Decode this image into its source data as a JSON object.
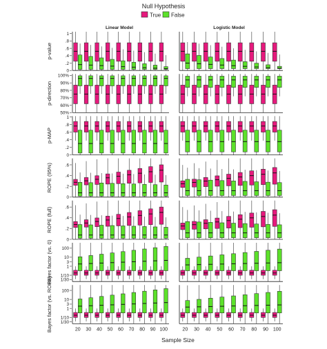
{
  "legend": {
    "title": "Null Hypothesis",
    "items": [
      {
        "label": "True",
        "color": "#e6197d"
      },
      {
        "label": "False",
        "color": "#5ce12a"
      }
    ]
  },
  "x_axis_label": "Sample Size",
  "chart_data": {
    "type": "boxplot",
    "title": "",
    "legend_title": "Null Hypothesis",
    "legend_position": "top",
    "xlabel": "Sample Size",
    "x": [
      "20",
      "30",
      "40",
      "50",
      "60",
      "70",
      "80",
      "90",
      "100"
    ],
    "panel_columns": [
      "Linear Model",
      "Logistic Model"
    ],
    "series_order": [
      "True",
      "False"
    ],
    "rows": [
      {
        "ylabel": "p-value",
        "scale": "linear",
        "ylim": [
          0,
          1.05
        ],
        "ticks": [
          0,
          0.2,
          0.4,
          0.6,
          0.8,
          1
        ],
        "tick_labels": [
          "0",
          ".2",
          ".4",
          ".6",
          ".8",
          "1"
        ],
        "panels": [
          {
            "True": [
              0.25,
              0.52,
              0.75
            ],
            "False": [
              0.03,
              0.16,
              0.42
            ]
          },
          {
            "True": [
              0.25,
              0.52,
              0.75
            ],
            "False": [
              0.05,
              0.2,
              0.45
            ]
          }
        ]
      },
      {
        "ylabel": "p-direction",
        "scale": "linear",
        "ylim": [
          50,
          102
        ],
        "ticks": [
          50,
          60,
          70,
          80,
          90,
          100
        ],
        "tick_labels": [
          "50%",
          "60%",
          "70%",
          "80%",
          "90%",
          "100%"
        ],
        "panels": [
          {
            "True": [
              62,
              75,
              87
            ],
            "False": [
              86,
              96,
              99.5
            ]
          },
          {
            "True": [
              62,
              75,
              87
            ],
            "False": [
              84,
              94,
              99
            ]
          }
        ]
      },
      {
        "ylabel": "p-MAP",
        "scale": "linear",
        "ylim": [
          0,
          1.02
        ],
        "ticks": [
          0,
          0.2,
          0.4,
          0.6,
          0.8,
          1
        ],
        "tick_labels": [
          "0",
          ".2",
          ".4",
          ".6",
          ".8",
          "1"
        ],
        "panels": [
          {
            "True": [
              0.6,
              0.76,
              0.88
            ],
            "False": [
              0.05,
              0.3,
              0.65
            ]
          },
          {
            "True": [
              0.6,
              0.76,
              0.88
            ],
            "False": [
              0.08,
              0.35,
              0.65
            ]
          }
        ]
      },
      {
        "ylabel": "ROPE (95%)",
        "scale": "linear",
        "ylim": [
          0,
          0.72
        ],
        "ticks": [
          0,
          0.2,
          0.4,
          0.6
        ],
        "tick_labels": [
          "0",
          ".2",
          ".4",
          ".6"
        ],
        "panels": [
          {
            "True": [
              0.22,
              0.5,
              0.6
            ],
            "False": [
              0.02,
              0.08,
              0.25
            ]
          },
          {
            "True": [
              0.18,
              0.45,
              0.55
            ],
            "False": [
              0.03,
              0.12,
              0.3
            ]
          }
        ]
      },
      {
        "ylabel": "ROPE (full)",
        "scale": "linear",
        "ylim": [
          0,
          0.72
        ],
        "ticks": [
          0,
          0.2,
          0.4,
          0.6
        ],
        "tick_labels": [
          "0",
          ".2",
          ".4",
          ".6"
        ],
        "panels": [
          {
            "True": [
              0.22,
              0.5,
              0.6
            ],
            "False": [
              0.02,
              0.08,
              0.25
            ]
          },
          {
            "True": [
              0.18,
              0.45,
              0.55
            ],
            "False": [
              0.03,
              0.12,
              0.3
            ]
          }
        ]
      },
      {
        "ylabel": "Bayes factor (vs. 0)",
        "scale": "log",
        "ylim": [
          -1.7,
          2.6
        ],
        "ticks": [
          -1.477,
          -1,
          0,
          0.477,
          1,
          2
        ],
        "tick_labels": [
          "1/30",
          "1/10",
          "1",
          "3",
          "10",
          "100"
        ],
        "panels": [
          {
            "True": [
              -1.0,
              -0.75,
              -0.45
            ],
            "False": [
              -0.5,
              0.5,
              1.9
            ]
          },
          {
            "True": [
              -1.0,
              -0.75,
              -0.45
            ],
            "False": [
              -0.5,
              0.3,
              1.6
            ]
          }
        ]
      },
      {
        "ylabel": "Bayes factor (vs. ROPE)",
        "scale": "log",
        "ylim": [
          -1.7,
          2.6
        ],
        "ticks": [
          -1.477,
          -1,
          0,
          0.477,
          1,
          2
        ],
        "tick_labels": [
          "1/30",
          "1/10",
          "1",
          "3",
          "10",
          "100"
        ],
        "panels": [
          {
            "True": [
              -1.0,
              -0.75,
              -0.45
            ],
            "False": [
              -0.5,
              0.5,
              1.9
            ]
          },
          {
            "True": [
              -1.0,
              -0.75,
              -0.45
            ],
            "False": [
              -0.5,
              0.3,
              1.6
            ]
          }
        ]
      }
    ]
  }
}
